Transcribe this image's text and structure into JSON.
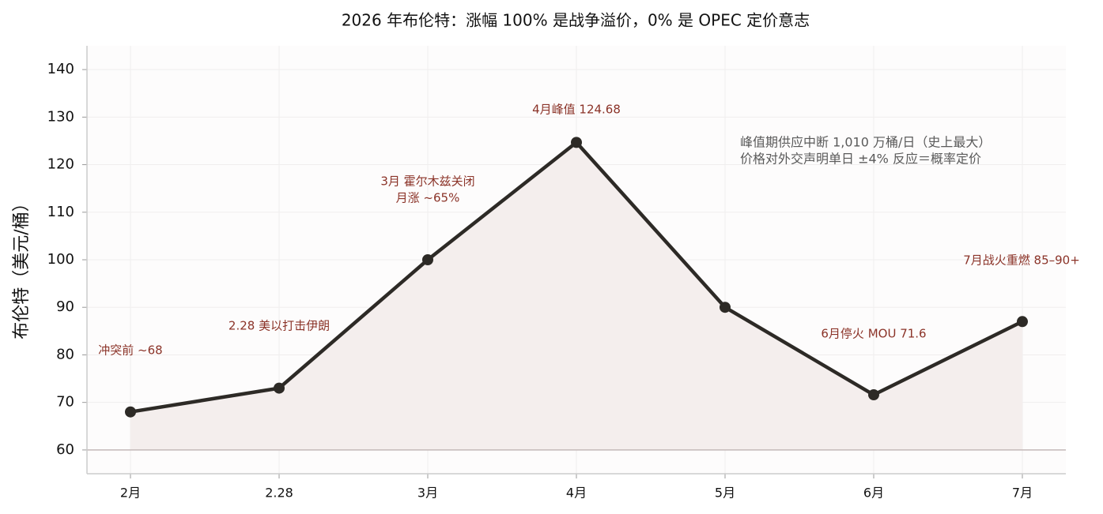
{
  "chart_data": {
    "type": "line",
    "title": "2026 年布伦特：涨幅 100% 是战争溢价，0% 是 OPEC 定价意志",
    "y_label": "布伦特（美元/桶）",
    "categories": [
      "2月",
      "2.28",
      "3月",
      "4月",
      "5月",
      "6月",
      "7月"
    ],
    "values": [
      68,
      73,
      100,
      124.68,
      90,
      71.6,
      87
    ],
    "color": "#2d2a26",
    "fill_color": "#f4eeed",
    "baseline": 60,
    "ylim": [
      55,
      145
    ],
    "yticks": [
      60,
      70,
      80,
      90,
      100,
      110,
      120,
      130,
      140
    ],
    "grid": true,
    "annotations": [
      [
        "冲突前 ~68"
      ],
      [
        "2.28 美以打击伊朗"
      ],
      [
        "3月 霍尔木兹关闭",
        "月涨 ~65%"
      ],
      [
        "4月峰值 124.68"
      ],
      [
        "6月停火 MOU 71.6"
      ],
      [
        "7月战火重燃 85–90+"
      ]
    ],
    "note": [
      "峰值期供应中断 1,010 万桶/日（史上最大）",
      "价格对外交声明单日 ±4% 反应＝概率定价"
    ]
  }
}
